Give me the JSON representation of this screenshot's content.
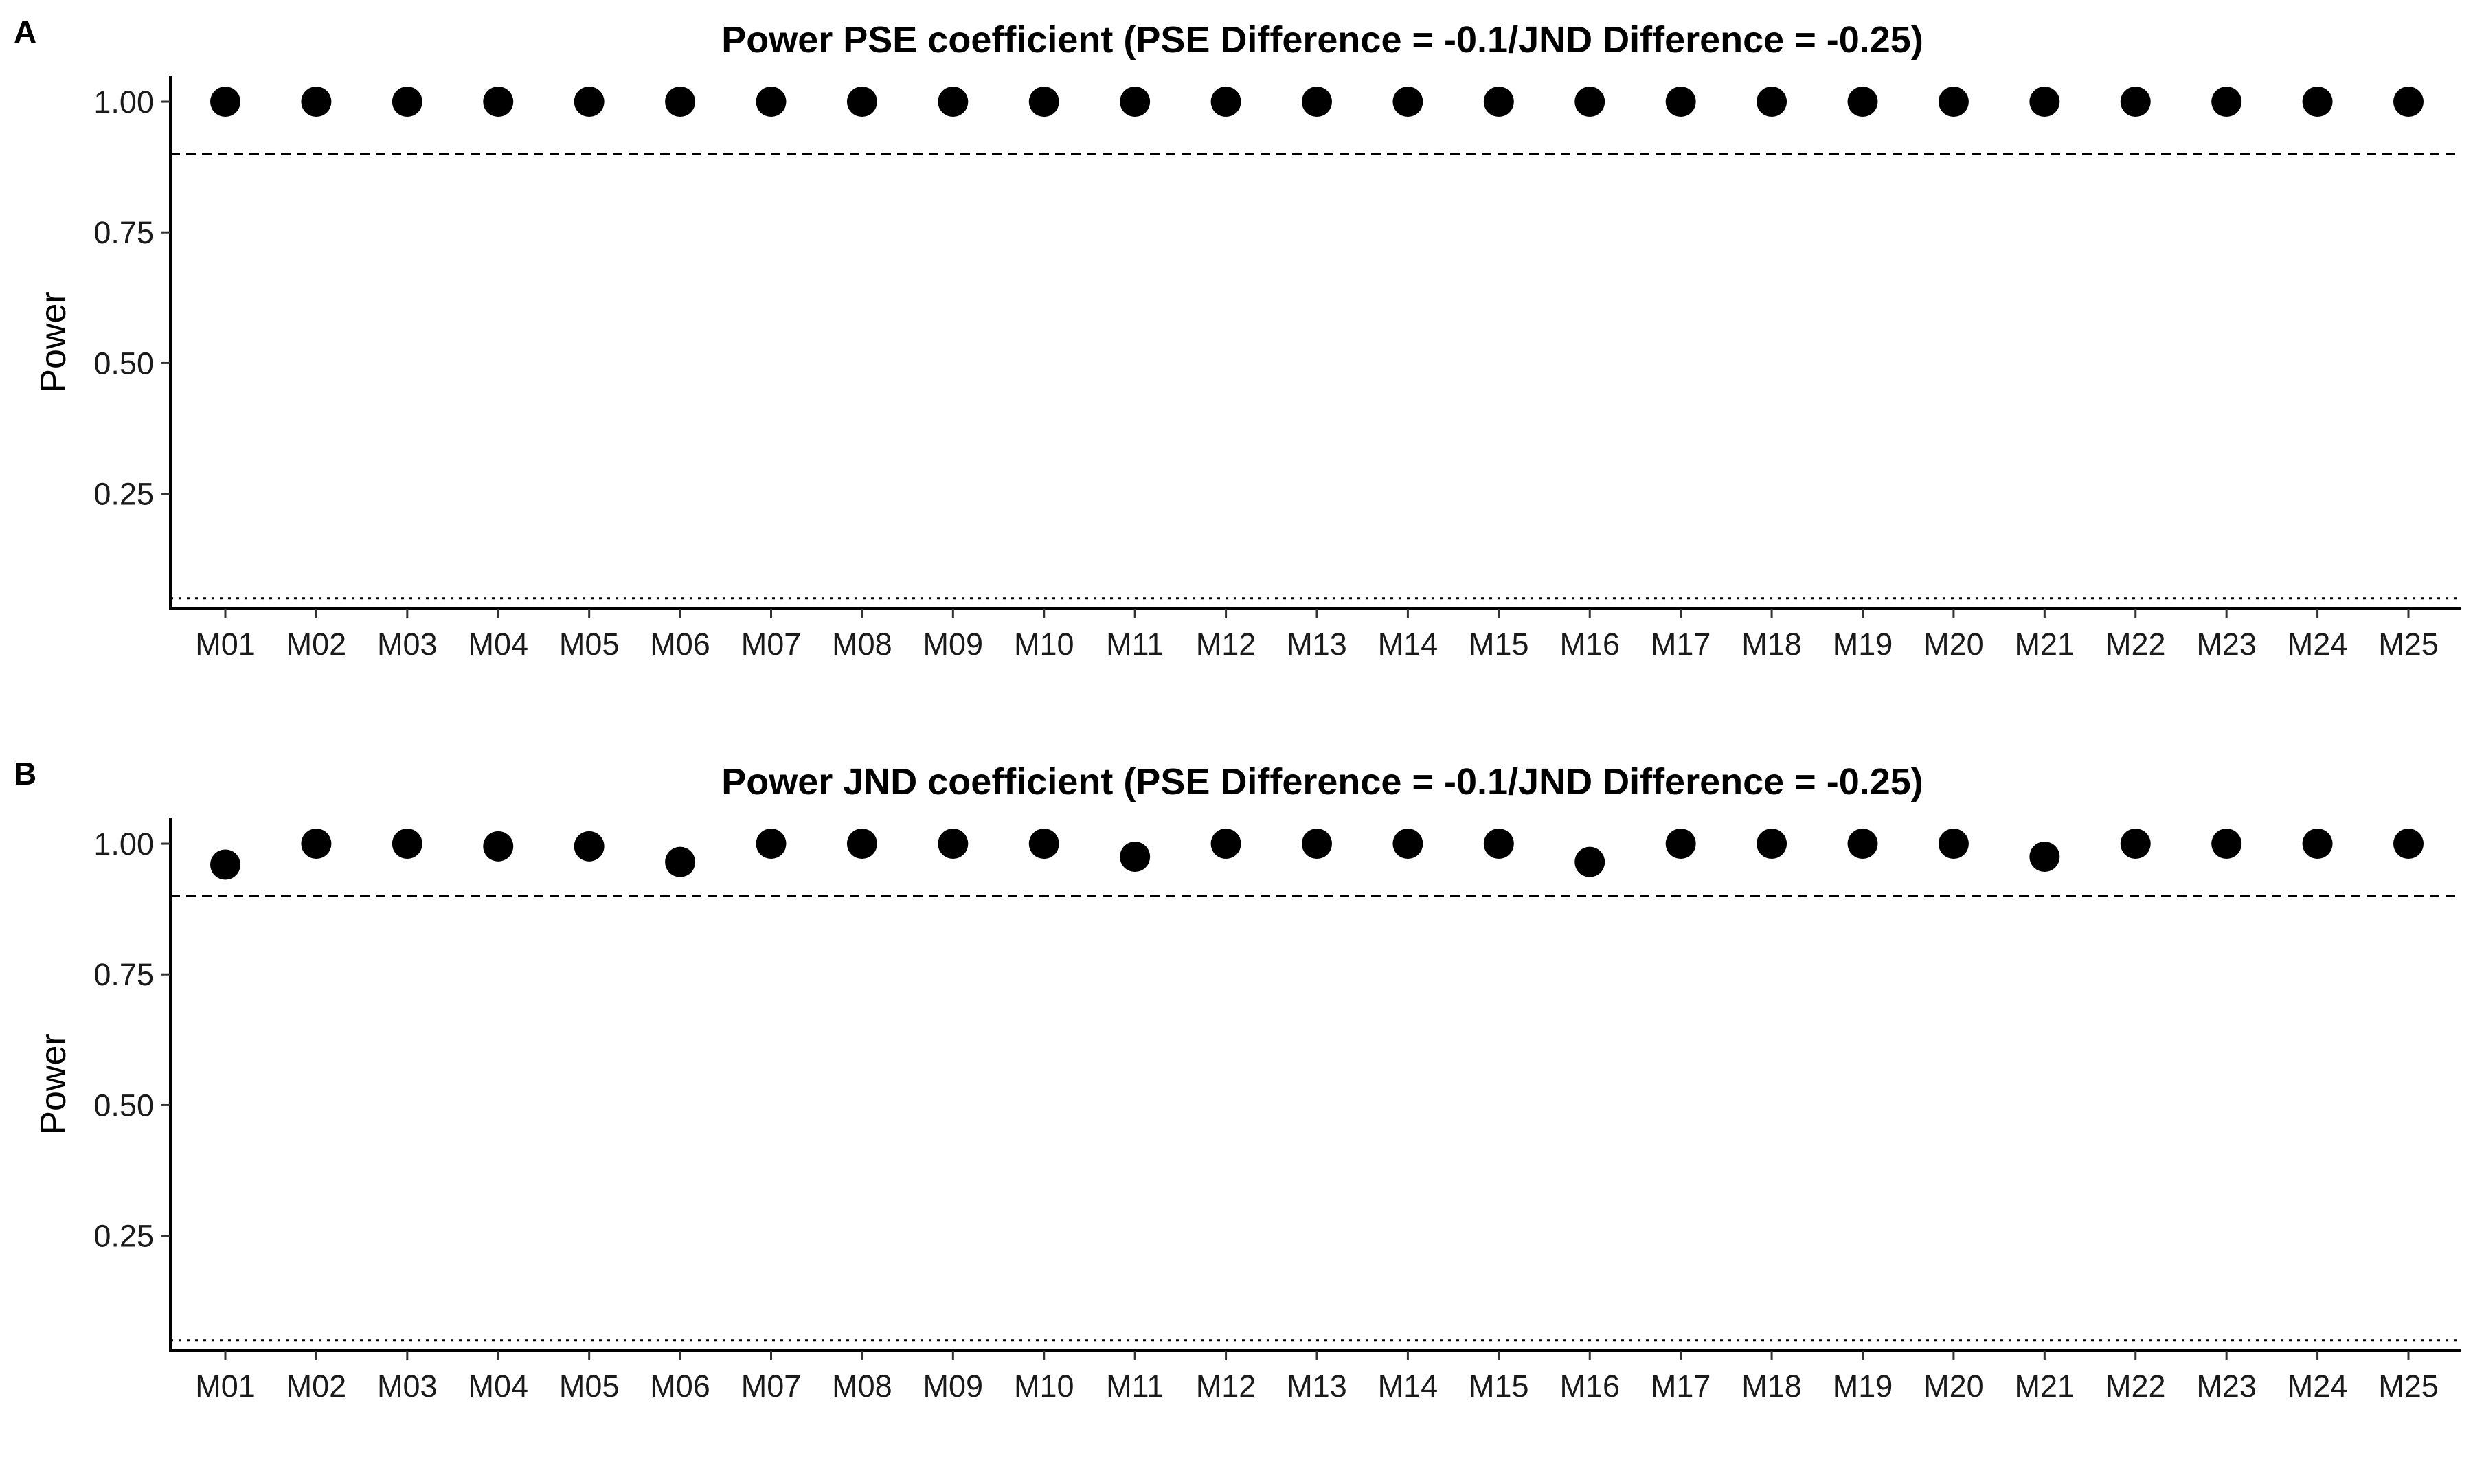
{
  "chart_data": [
    {
      "type": "scatter",
      "panel_label": "A",
      "title": "Power PSE coefficient (PSE Difference = -0.1/JND Difference = -0.25)",
      "xlabel": "",
      "ylabel": "Power",
      "categories": [
        "M01",
        "M02",
        "M03",
        "M04",
        "M05",
        "M06",
        "M07",
        "M08",
        "M09",
        "M10",
        "M11",
        "M12",
        "M13",
        "M14",
        "M15",
        "M16",
        "M17",
        "M18",
        "M19",
        "M20",
        "M21",
        "M22",
        "M23",
        "M24",
        "M25"
      ],
      "values": [
        1,
        1,
        1,
        1,
        1,
        1,
        1,
        1,
        1,
        1,
        1,
        1,
        1,
        1,
        1,
        1,
        1,
        1,
        1,
        1,
        1,
        1,
        1,
        1,
        1
      ],
      "yticks": [
        0.25,
        0.5,
        0.75,
        1.0
      ],
      "ytick_labels": [
        "0.25",
        "0.50",
        "0.75",
        "1.00"
      ],
      "ylim": [
        0.03,
        1.05
      ],
      "reference_lines": [
        {
          "y": 0.9,
          "style": "dashed"
        },
        {
          "y": 0.05,
          "style": "dotted"
        }
      ],
      "grid": false,
      "marker_color": "#000000"
    },
    {
      "type": "scatter",
      "panel_label": "B",
      "title": "Power JND coefficient (PSE Difference = -0.1/JND Difference = -0.25)",
      "xlabel": "",
      "ylabel": "Power",
      "categories": [
        "M01",
        "M02",
        "M03",
        "M04",
        "M05",
        "M06",
        "M07",
        "M08",
        "M09",
        "M10",
        "M11",
        "M12",
        "M13",
        "M14",
        "M15",
        "M16",
        "M17",
        "M18",
        "M19",
        "M20",
        "M21",
        "M22",
        "M23",
        "M24",
        "M25"
      ],
      "values": [
        0.96,
        1,
        1,
        0.995,
        0.995,
        0.965,
        1,
        1,
        1,
        1,
        0.975,
        1,
        1,
        1,
        1,
        0.965,
        1,
        1,
        1,
        1,
        0.975,
        1,
        1,
        1,
        1
      ],
      "yticks": [
        0.25,
        0.5,
        0.75,
        1.0
      ],
      "ytick_labels": [
        "0.25",
        "0.50",
        "0.75",
        "1.00"
      ],
      "ylim": [
        0.03,
        1.05
      ],
      "reference_lines": [
        {
          "y": 0.9,
          "style": "dashed"
        },
        {
          "y": 0.05,
          "style": "dotted"
        }
      ],
      "grid": false,
      "marker_color": "#000000"
    }
  ]
}
